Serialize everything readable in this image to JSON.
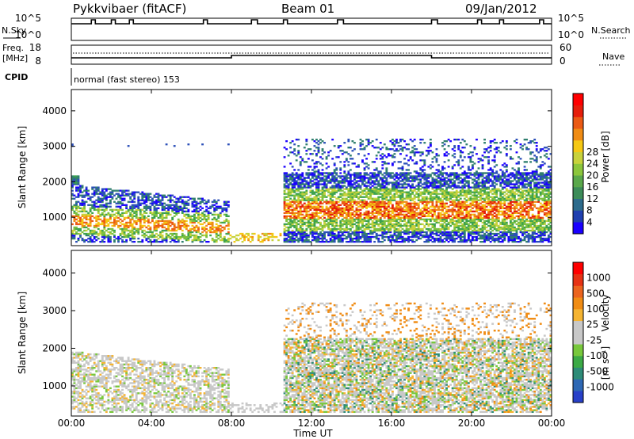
{
  "header": {
    "title": "Pykkvibaer (fitACF)",
    "beam": "Beam 01",
    "date": "09/Jan/2012"
  },
  "status": {
    "nsky_label": "N.Sky",
    "nsky_ticks": [
      "10^5",
      "10^0"
    ],
    "nsearch_label": "N.Search",
    "nsearch_ticks": [
      "10^5",
      "10^0"
    ],
    "freq_label": "Freq.",
    "freq_unit": "[MHz]",
    "freq_ticks": [
      "18",
      "8"
    ],
    "nave_label": "Nave",
    "nave_ticks": [
      "60",
      "0"
    ],
    "cpid_label": "CPID",
    "cpid_text": "normal (fast stereo) 153"
  },
  "chart_data": [
    {
      "type": "heatmap",
      "name": "power",
      "xlabel": "Time UT",
      "ylabel": "Slant Range [km]",
      "xlim": [
        "00:00",
        "24:00"
      ],
      "ylim": [
        200,
        4600
      ],
      "y_ticks": [
        "1000",
        "2000",
        "3000",
        "4000"
      ],
      "x_ticks": [
        "00:00",
        "04:00",
        "08:00",
        "12:00",
        "16:00",
        "20:00",
        "00:00"
      ],
      "colorbar": {
        "label": "Power [dB]",
        "ticks": [
          "4",
          "8",
          "12",
          "16",
          "20",
          "24",
          "28"
        ],
        "range": [
          0,
          30
        ],
        "colors": [
          "#1a00ff",
          "#1f3fb0",
          "#2d6b8c",
          "#3c8c59",
          "#5aa84b",
          "#8cc63c",
          "#c8d23c",
          "#f5c814",
          "#f08c14",
          "#eb5a14",
          "#e61e0a",
          "#ff0000"
        ]
      }
    },
    {
      "type": "heatmap",
      "name": "velocity",
      "xlabel": "Time UT",
      "ylabel": "Slant Range [km]",
      "xlim": [
        "00:00",
        "24:00"
      ],
      "ylim": [
        200,
        4600
      ],
      "y_ticks": [
        "1000",
        "2000",
        "3000",
        "4000"
      ],
      "x_ticks": [
        "00:00",
        "04:00",
        "08:00",
        "12:00",
        "16:00",
        "20:00",
        "00:00"
      ],
      "colorbar": {
        "label": "Velocity",
        "unit": "[m s⁻¹]",
        "ticks": [
          "1000",
          "500",
          "100",
          "25",
          "-25",
          "-100",
          "-500",
          "-1000"
        ],
        "colors": [
          "#2840c8",
          "#2e68b4",
          "#2e8c78",
          "#3caa46",
          "#78c83c",
          "#c8c8c8",
          "#c8c8c8",
          "#f5b432",
          "#f08c14",
          "#eb641e",
          "#e63214",
          "#ff0000"
        ]
      }
    }
  ],
  "palette": {
    "power_colors": [
      "#1a00ff",
      "#2b4fb8",
      "#2f7f6e",
      "#3ca24e",
      "#7cc040",
      "#c8d23c",
      "#f5c814",
      "#f08c14",
      "#eb5a14",
      "#e61e0a"
    ],
    "velocity_colors": [
      "#2840c8",
      "#2e8c78",
      "#3caa46",
      "#78c83c",
      "#c8c8c8",
      "#f5b432",
      "#f08c14",
      "#e63214"
    ]
  }
}
